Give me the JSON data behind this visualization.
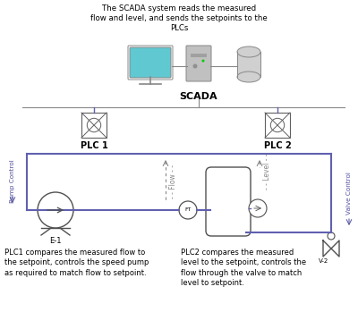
{
  "title_text": "The SCADA system reads the measured\nflow and level, and sends the setpoints to the\nPLCs",
  "scada_label": "SCADA",
  "plc1_label": "PLC 1",
  "plc2_label": "PLC 2",
  "pump_label": "E-1",
  "valve_label": "V-2",
  "flow_label": "- - Flow - -",
  "level_label": "- - Level - -",
  "pump_ctrl_label": "Pump Control",
  "valve_ctrl_label": "Valve Control",
  "bottom_left_text": "PLC1 compares the measured flow to\nthe setpoint, controls the speed pump\nas required to match flow to setpoint.",
  "bottom_right_text": "PLC2 compares the measured\nlevel to the setpoint, controls the\nflow through the valve to match\nlevel to setpoint.",
  "bg_color": "#ffffff",
  "pipe_color": "#6060b0",
  "dashed_color": "#888888",
  "text_color": "#000000",
  "plc_color": "#606060",
  "monitor_color": "#60c8d0",
  "tower_color": "#c0c0c0",
  "db_color": "#d0d0d0"
}
